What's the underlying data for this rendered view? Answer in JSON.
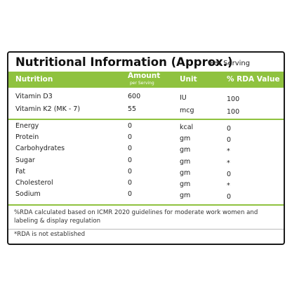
{
  "header": {
    "title": "Nutritional Information (Approx.)",
    "subtitle": "Per Serving"
  },
  "table": {
    "columns": [
      "Nutrition",
      "Amount",
      "Unit",
      "% RDA Value"
    ],
    "amount_note": "per Serving",
    "vitamins": [
      [
        "Vitamin D3",
        "600",
        "IU",
        "100"
      ],
      [
        "Vitamin K2 (MK - 7)",
        "55",
        "mcg",
        "100"
      ]
    ],
    "nutrients": [
      [
        "Energy",
        "0",
        "kcal",
        "0"
      ],
      [
        "Protein",
        "0",
        "gm",
        "0"
      ],
      [
        "Carbohydrates",
        "0",
        "gm",
        "*"
      ],
      [
        "Sugar",
        "0",
        "gm",
        "*"
      ],
      [
        "Fat",
        "0",
        "gm",
        "0"
      ],
      [
        "Cholesterol",
        "0",
        "gm",
        "*"
      ],
      [
        "Sodium",
        "0",
        "gm",
        "0"
      ]
    ]
  },
  "notes": [
    "%RDA calculated based on ICMR 2020 guidelines for moderate work women and",
    "labeling & display regulation",
    "*RDA is not established"
  ]
}
